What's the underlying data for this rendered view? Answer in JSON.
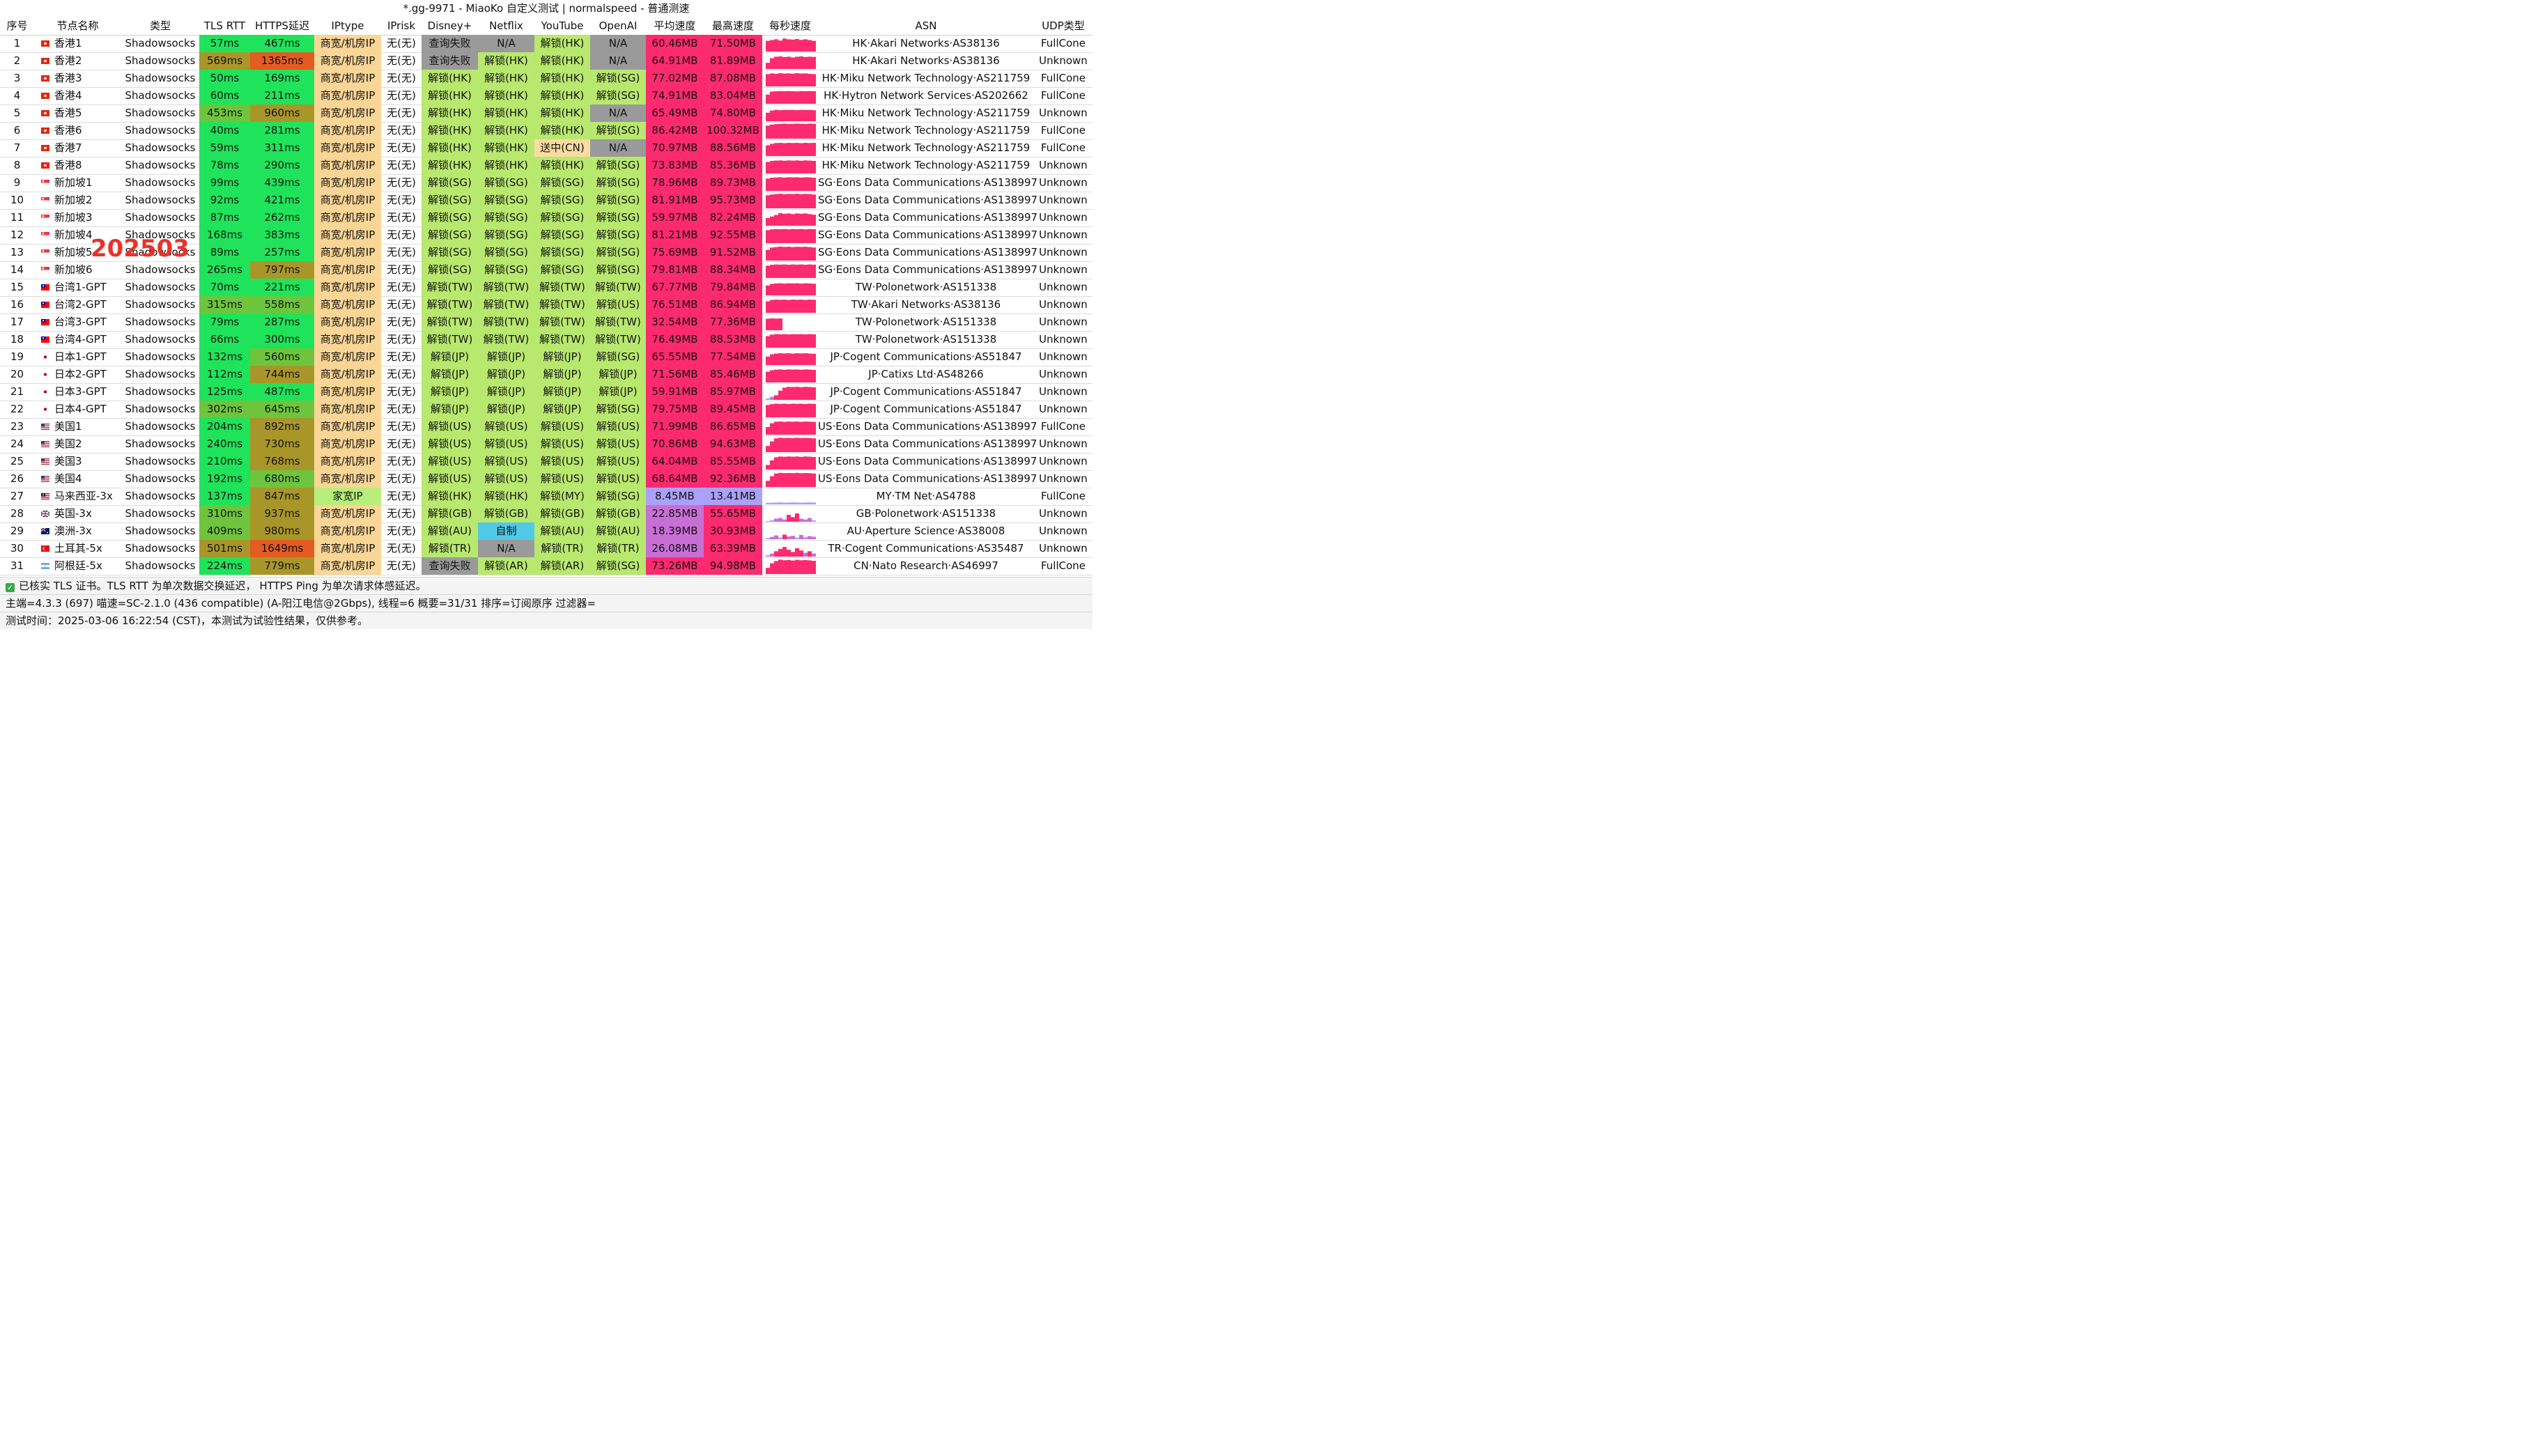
{
  "window_title": "*.gg-9971 - MiaoKo 自定义测试 | normalspeed - 普通测速",
  "watermark_text": "202503",
  "colors": {
    "latency_good": "#1fe35a",
    "latency_mid": "#6ec53d",
    "latency_warn": "#a89728",
    "latency_bad": "#e45b21",
    "iptype_commercial": "#f9d596",
    "iptype_home": "#b8ef7a",
    "unlock": "#b8e86e",
    "na_fail": "#9a9a9a",
    "sending": "#fbdca0",
    "self_made": "#4fc9e7",
    "speed_hot": "#fd2a6f",
    "speed_mid": "#c86fd6",
    "speed_low": "#a9a2f8"
  },
  "columns": [
    "序号",
    "节点名称",
    "类型",
    "TLS RTT",
    "HTTPS延迟",
    "IPtype",
    "IPrisk",
    "Disney+",
    "Netflix",
    "YouTube",
    "OpenAI",
    "平均速度",
    "最高速度",
    "每秒速度",
    "ASN",
    "UDP类型"
  ],
  "rows": [
    {
      "no": "1",
      "flag": "hk",
      "name": "香港1",
      "type": "Shadowsocks",
      "tls": "57ms",
      "https": "467ms",
      "iptype": "商宽/机房IP",
      "iprisk": "无(无)",
      "disney": "查询失败",
      "netflix": "N/A",
      "youtube": "解锁(HK)",
      "openai": "N/A",
      "avg": "60.46MB",
      "max": "71.50MB",
      "asn": "HK·Akari Networks·AS38136",
      "udp": "FullCone",
      "spark": [
        70,
        75,
        80,
        72,
        85,
        80,
        78,
        82,
        76,
        80,
        75,
        70
      ]
    },
    {
      "no": "2",
      "flag": "hk",
      "name": "香港2",
      "type": "Shadowsocks",
      "tls": "569ms",
      "https": "1365ms",
      "iptype": "商宽/机房IP",
      "iprisk": "无(无)",
      "disney": "查询失败",
      "netflix": "解锁(HK)",
      "youtube": "解锁(HK)",
      "openai": "N/A",
      "avg": "64.91MB",
      "max": "81.89MB",
      "asn": "HK·Akari Networks·AS38136",
      "udp": "Unknown",
      "spark": [
        40,
        70,
        80,
        82,
        78,
        80,
        75,
        80,
        82,
        78,
        80,
        79
      ]
    },
    {
      "no": "3",
      "flag": "hk",
      "name": "香港3",
      "type": "Shadowsocks",
      "tls": "50ms",
      "https": "169ms",
      "iptype": "商宽/机房IP",
      "iprisk": "无(无)",
      "disney": "解锁(HK)",
      "netflix": "解锁(HK)",
      "youtube": "解锁(HK)",
      "openai": "解锁(SG)",
      "avg": "77.02MB",
      "max": "87.08MB",
      "asn": "HK·Miku Network Technology·AS211759",
      "udp": "FullCone",
      "spark": [
        80,
        85,
        82,
        86,
        84,
        85,
        83,
        86,
        84,
        85,
        82,
        80
      ]
    },
    {
      "no": "4",
      "flag": "hk",
      "name": "香港4",
      "type": "Shadowsocks",
      "tls": "60ms",
      "https": "211ms",
      "iptype": "商宽/机房IP",
      "iprisk": "无(无)",
      "disney": "解锁(HK)",
      "netflix": "解锁(HK)",
      "youtube": "解锁(HK)",
      "openai": "解锁(SG)",
      "avg": "74.91MB",
      "max": "83.04MB",
      "asn": "HK·Hytron Network Services·AS202662",
      "udp": "FullCone",
      "spark": [
        60,
        80,
        82,
        83,
        82,
        83,
        82,
        81,
        83,
        82,
        83,
        82
      ]
    },
    {
      "no": "5",
      "flag": "hk",
      "name": "香港5",
      "type": "Shadowsocks",
      "tls": "453ms",
      "https": "960ms",
      "iptype": "商宽/机房IP",
      "iprisk": "无(无)",
      "disney": "解锁(HK)",
      "netflix": "解锁(HK)",
      "youtube": "解锁(HK)",
      "openai": "N/A",
      "avg": "65.49MB",
      "max": "74.80MB",
      "asn": "HK·Miku Network Technology·AS211759",
      "udp": "Unknown",
      "spark": [
        55,
        70,
        74,
        72,
        74,
        73,
        74,
        72,
        74,
        73,
        74,
        72
      ]
    },
    {
      "no": "6",
      "flag": "hk",
      "name": "香港6",
      "type": "Shadowsocks",
      "tls": "40ms",
      "https": "281ms",
      "iptype": "商宽/机房IP",
      "iprisk": "无(无)",
      "disney": "解锁(HK)",
      "netflix": "解锁(HK)",
      "youtube": "解锁(HK)",
      "openai": "解锁(SG)",
      "avg": "86.42MB",
      "max": "100.32MB",
      "asn": "HK·Miku Network Technology·AS211759",
      "udp": "FullCone",
      "spark": [
        85,
        92,
        95,
        96,
        98,
        96,
        97,
        98,
        97,
        96,
        98,
        97
      ]
    },
    {
      "no": "7",
      "flag": "hk",
      "name": "香港7",
      "type": "Shadowsocks",
      "tls": "59ms",
      "https": "311ms",
      "iptype": "商宽/机房IP",
      "iprisk": "无(无)",
      "disney": "解锁(HK)",
      "netflix": "解锁(HK)",
      "youtube": "送中(CN)",
      "openai": "N/A",
      "avg": "70.97MB",
      "max": "88.56MB",
      "asn": "HK·Miku Network Technology·AS211759",
      "udp": "FullCone",
      "spark": [
        70,
        80,
        85,
        86,
        84,
        86,
        85,
        86,
        84,
        86,
        85,
        86
      ]
    },
    {
      "no": "8",
      "flag": "hk",
      "name": "香港8",
      "type": "Shadowsocks",
      "tls": "78ms",
      "https": "290ms",
      "iptype": "商宽/机房IP",
      "iprisk": "无(无)",
      "disney": "解锁(HK)",
      "netflix": "解锁(HK)",
      "youtube": "解锁(HK)",
      "openai": "解锁(SG)",
      "avg": "73.83MB",
      "max": "85.36MB",
      "asn": "HK·Miku Network Technology·AS211759",
      "udp": "Unknown",
      "spark": [
        75,
        82,
        84,
        85,
        83,
        85,
        84,
        85,
        83,
        85,
        84,
        82
      ]
    },
    {
      "no": "9",
      "flag": "sg",
      "name": "新加坡1",
      "type": "Shadowsocks",
      "tls": "99ms",
      "https": "439ms",
      "iptype": "商宽/机房IP",
      "iprisk": "无(无)",
      "disney": "解锁(SG)",
      "netflix": "解锁(SG)",
      "youtube": "解锁(SG)",
      "openai": "解锁(SG)",
      "avg": "78.96MB",
      "max": "89.73MB",
      "asn": "SG·Eons Data Communications·AS138997",
      "udp": "Unknown",
      "spark": [
        80,
        86,
        88,
        89,
        87,
        89,
        88,
        89,
        87,
        89,
        88,
        86
      ]
    },
    {
      "no": "10",
      "flag": "sg",
      "name": "新加坡2",
      "type": "Shadowsocks",
      "tls": "92ms",
      "https": "421ms",
      "iptype": "商宽/机房IP",
      "iprisk": "无(无)",
      "disney": "解锁(SG)",
      "netflix": "解锁(SG)",
      "youtube": "解锁(SG)",
      "openai": "解锁(SG)",
      "avg": "81.91MB",
      "max": "95.73MB",
      "asn": "SG·Eons Data Communications·AS138997",
      "udp": "Unknown",
      "spark": [
        85,
        90,
        93,
        95,
        92,
        94,
        93,
        95,
        92,
        94,
        93,
        90
      ]
    },
    {
      "no": "11",
      "flag": "sg",
      "name": "新加坡3",
      "type": "Shadowsocks",
      "tls": "87ms",
      "https": "262ms",
      "iptype": "商宽/机房IP",
      "iprisk": "无(无)",
      "disney": "解锁(SG)",
      "netflix": "解锁(SG)",
      "youtube": "解锁(SG)",
      "openai": "解锁(SG)",
      "avg": "59.97MB",
      "max": "82.24MB",
      "asn": "SG·Eons Data Communications·AS138997",
      "udp": "Unknown",
      "spark": [
        50,
        60,
        70,
        82,
        78,
        80,
        76,
        80,
        78,
        80,
        76,
        72
      ]
    },
    {
      "no": "12",
      "flag": "sg",
      "name": "新加坡4",
      "type": "Shadowsocks",
      "tls": "168ms",
      "https": "383ms",
      "iptype": "商宽/机房IP",
      "iprisk": "无(无)",
      "disney": "解锁(SG)",
      "netflix": "解锁(SG)",
      "youtube": "解锁(SG)",
      "openai": "解锁(SG)",
      "avg": "81.21MB",
      "max": "92.55MB",
      "asn": "SG·Eons Data Communications·AS138997",
      "udp": "Unknown",
      "spark": [
        85,
        90,
        92,
        91,
        92,
        90,
        92,
        91,
        92,
        90,
        92,
        91
      ]
    },
    {
      "no": "13",
      "flag": "sg",
      "name": "新加坡5",
      "type": "Shadowsocks",
      "tls": "89ms",
      "https": "257ms",
      "iptype": "商宽/机房IP",
      "iprisk": "无(无)",
      "disney": "解锁(SG)",
      "netflix": "解锁(SG)",
      "youtube": "解锁(SG)",
      "openai": "解锁(SG)",
      "avg": "75.69MB",
      "max": "91.52MB",
      "asn": "SG·Eons Data Communications·AS138997",
      "udp": "Unknown",
      "spark": [
        70,
        85,
        88,
        91,
        89,
        90,
        88,
        90,
        89,
        90,
        88,
        85
      ]
    },
    {
      "no": "14",
      "flag": "sg",
      "name": "新加坡6",
      "type": "Shadowsocks",
      "tls": "265ms",
      "https": "797ms",
      "iptype": "商宽/机房IP",
      "iprisk": "无(无)",
      "disney": "解锁(SG)",
      "netflix": "解锁(SG)",
      "youtube": "解锁(SG)",
      "openai": "解锁(SG)",
      "avg": "79.81MB",
      "max": "88.34MB",
      "asn": "SG·Eons Data Communications·AS138997",
      "udp": "Unknown",
      "spark": [
        80,
        86,
        88,
        87,
        88,
        86,
        88,
        87,
        88,
        86,
        88,
        87
      ]
    },
    {
      "no": "15",
      "flag": "tw",
      "name": "台湾1-GPT",
      "type": "Shadowsocks",
      "tls": "70ms",
      "https": "221ms",
      "iptype": "商宽/机房IP",
      "iprisk": "无(无)",
      "disney": "解锁(TW)",
      "netflix": "解锁(TW)",
      "youtube": "解锁(TW)",
      "openai": "解锁(TW)",
      "avg": "67.77MB",
      "max": "79.84MB",
      "asn": "TW·Polonetwork·AS151338",
      "udp": "Unknown",
      "spark": [
        65,
        75,
        78,
        79,
        77,
        79,
        78,
        79,
        77,
        79,
        78,
        76
      ]
    },
    {
      "no": "16",
      "flag": "tw",
      "name": "台湾2-GPT",
      "type": "Shadowsocks",
      "tls": "315ms",
      "https": "558ms",
      "iptype": "商宽/机房IP",
      "iprisk": "无(无)",
      "disney": "解锁(TW)",
      "netflix": "解锁(TW)",
      "youtube": "解锁(TW)",
      "openai": "解锁(US)",
      "avg": "76.51MB",
      "max": "86.94MB",
      "asn": "TW·Akari Networks·AS38136",
      "udp": "Unknown",
      "spark": [
        75,
        84,
        86,
        85,
        86,
        84,
        86,
        85,
        86,
        84,
        86,
        85
      ]
    },
    {
      "no": "17",
      "flag": "tw",
      "name": "台湾3-GPT",
      "type": "Shadowsocks",
      "tls": "79ms",
      "https": "287ms",
      "iptype": "商宽/机房IP",
      "iprisk": "无(无)",
      "disney": "解锁(TW)",
      "netflix": "解锁(TW)",
      "youtube": "解锁(TW)",
      "openai": "解锁(TW)",
      "avg": "32.54MB",
      "max": "77.36MB",
      "asn": "TW·Polonetwork·AS151338",
      "udp": "Unknown",
      "spark": [
        75,
        77,
        76,
        77,
        0,
        0,
        0,
        0,
        0,
        0,
        0,
        0
      ]
    },
    {
      "no": "18",
      "flag": "tw",
      "name": "台湾4-GPT",
      "type": "Shadowsocks",
      "tls": "66ms",
      "https": "300ms",
      "iptype": "商宽/机房IP",
      "iprisk": "无(无)",
      "disney": "解锁(TW)",
      "netflix": "解锁(TW)",
      "youtube": "解锁(TW)",
      "openai": "解锁(TW)",
      "avg": "76.49MB",
      "max": "88.53MB",
      "asn": "TW·Polonetwork·AS151338",
      "udp": "Unknown",
      "spark": [
        75,
        85,
        88,
        87,
        88,
        86,
        88,
        87,
        88,
        86,
        88,
        87
      ]
    },
    {
      "no": "19",
      "flag": "jp",
      "name": "日本1-GPT",
      "type": "Shadowsocks",
      "tls": "132ms",
      "https": "560ms",
      "iptype": "商宽/机房IP",
      "iprisk": "无(无)",
      "disney": "解锁(JP)",
      "netflix": "解锁(JP)",
      "youtube": "解锁(JP)",
      "openai": "解锁(SG)",
      "avg": "65.55MB",
      "max": "77.54MB",
      "asn": "JP·Cogent Communications·AS51847",
      "udp": "Unknown",
      "spark": [
        55,
        70,
        75,
        77,
        76,
        77,
        75,
        77,
        76,
        77,
        75,
        74
      ]
    },
    {
      "no": "20",
      "flag": "jp",
      "name": "日本2-GPT",
      "type": "Shadowsocks",
      "tls": "112ms",
      "https": "744ms",
      "iptype": "商宽/机房IP",
      "iprisk": "无(无)",
      "disney": "解锁(JP)",
      "netflix": "解锁(JP)",
      "youtube": "解锁(JP)",
      "openai": "解锁(JP)",
      "avg": "71.56MB",
      "max": "85.46MB",
      "asn": "JP·Catixs Ltd·AS48266",
      "udp": "Unknown",
      "spark": [
        70,
        80,
        84,
        85,
        83,
        85,
        84,
        85,
        83,
        85,
        84,
        82
      ]
    },
    {
      "no": "21",
      "flag": "jp",
      "name": "日本3-GPT",
      "type": "Shadowsocks",
      "tls": "125ms",
      "https": "487ms",
      "iptype": "商宽/机房IP",
      "iprisk": "无(无)",
      "disney": "解锁(JP)",
      "netflix": "解锁(JP)",
      "youtube": "解锁(JP)",
      "openai": "解锁(JP)",
      "avg": "59.91MB",
      "max": "85.97MB",
      "asn": "JP·Cogent Communications·AS51847",
      "udp": "Unknown",
      "spark": [
        10,
        20,
        30,
        60,
        80,
        85,
        84,
        85,
        83,
        85,
        84,
        82
      ]
    },
    {
      "no": "22",
      "flag": "jp",
      "name": "日本4-GPT",
      "type": "Shadowsocks",
      "tls": "302ms",
      "https": "645ms",
      "iptype": "商宽/机房IP",
      "iprisk": "无(无)",
      "disney": "解锁(JP)",
      "netflix": "解锁(JP)",
      "youtube": "解锁(JP)",
      "openai": "解锁(SG)",
      "avg": "79.75MB",
      "max": "89.45MB",
      "asn": "JP·Cogent Communications·AS51847",
      "udp": "Unknown",
      "spark": [
        80,
        86,
        89,
        88,
        89,
        87,
        89,
        88,
        89,
        87,
        89,
        88
      ]
    },
    {
      "no": "23",
      "flag": "us",
      "name": "美国1",
      "type": "Shadowsocks",
      "tls": "204ms",
      "https": "892ms",
      "iptype": "商宽/机房IP",
      "iprisk": "无(无)",
      "disney": "解锁(US)",
      "netflix": "解锁(US)",
      "youtube": "解锁(US)",
      "openai": "解锁(US)",
      "avg": "71.99MB",
      "max": "86.65MB",
      "asn": "US·Eons Data Communications·AS138997",
      "udp": "FullCone",
      "spark": [
        50,
        75,
        85,
        86,
        84,
        86,
        85,
        86,
        84,
        86,
        85,
        84
      ]
    },
    {
      "no": "24",
      "flag": "us",
      "name": "美国2",
      "type": "Shadowsocks",
      "tls": "240ms",
      "https": "730ms",
      "iptype": "商宽/机房IP",
      "iprisk": "无(无)",
      "disney": "解锁(US)",
      "netflix": "解锁(US)",
      "youtube": "解锁(US)",
      "openai": "解锁(US)",
      "avg": "70.86MB",
      "max": "94.63MB",
      "asn": "US·Eons Data Communications·AS138997",
      "udp": "Unknown",
      "spark": [
        40,
        70,
        90,
        94,
        92,
        93,
        92,
        94,
        92,
        93,
        92,
        90
      ]
    },
    {
      "no": "25",
      "flag": "us",
      "name": "美国3",
      "type": "Shadowsocks",
      "tls": "210ms",
      "https": "768ms",
      "iptype": "商宽/机房IP",
      "iprisk": "无(无)",
      "disney": "解锁(US)",
      "netflix": "解锁(US)",
      "youtube": "解锁(US)",
      "openai": "解锁(US)",
      "avg": "64.04MB",
      "max": "85.55MB",
      "asn": "US·Eons Data Communications·AS138997",
      "udp": "Unknown",
      "spark": [
        30,
        60,
        80,
        85,
        83,
        85,
        84,
        85,
        83,
        85,
        84,
        82
      ]
    },
    {
      "no": "26",
      "flag": "us",
      "name": "美国4",
      "type": "Shadowsocks",
      "tls": "192ms",
      "https": "680ms",
      "iptype": "商宽/机房IP",
      "iprisk": "无(无)",
      "disney": "解锁(US)",
      "netflix": "解锁(US)",
      "youtube": "解锁(US)",
      "openai": "解锁(US)",
      "avg": "68.64MB",
      "max": "92.36MB",
      "asn": "US·Eons Data Communications·AS138997",
      "udp": "Unknown",
      "spark": [
        40,
        70,
        88,
        92,
        90,
        91,
        90,
        92,
        90,
        91,
        90,
        88
      ]
    },
    {
      "no": "27",
      "flag": "my",
      "name": "马来西亚-3x",
      "type": "Shadowsocks",
      "tls": "137ms",
      "https": "847ms",
      "iptype": "家宽IP",
      "iprisk": "无(无)",
      "disney": "解锁(HK)",
      "netflix": "解锁(HK)",
      "youtube": "解锁(MY)",
      "openai": "解锁(SG)",
      "avg": "8.45MB",
      "max": "13.41MB",
      "asn": "MY·TM Net·AS4788",
      "udp": "FullCone",
      "spark": [
        10,
        11,
        12,
        13,
        11,
        12,
        13,
        12,
        11,
        12,
        13,
        12
      ]
    },
    {
      "no": "28",
      "flag": "gb",
      "name": "英国-3x",
      "type": "Shadowsocks",
      "tls": "310ms",
      "https": "937ms",
      "iptype": "商宽/机房IP",
      "iprisk": "无(无)",
      "disney": "解锁(GB)",
      "netflix": "解锁(GB)",
      "youtube": "解锁(GB)",
      "openai": "解锁(GB)",
      "avg": "22.85MB",
      "max": "55.65MB",
      "asn": "GB·Polonetwork·AS151338",
      "udp": "Unknown",
      "spark": [
        5,
        10,
        20,
        25,
        15,
        45,
        30,
        55,
        20,
        15,
        25,
        10
      ]
    },
    {
      "no": "29",
      "flag": "au",
      "name": "澳洲-3x",
      "type": "Shadowsocks",
      "tls": "409ms",
      "https": "980ms",
      "iptype": "商宽/机房IP",
      "iprisk": "无(无)",
      "disney": "解锁(AU)",
      "netflix": "自制",
      "youtube": "解锁(AU)",
      "openai": "解锁(AU)",
      "avg": "18.39MB",
      "max": "30.93MB",
      "asn": "AU·Aperture Science·AS38008",
      "udp": "Unknown",
      "spark": [
        8,
        15,
        25,
        12,
        30,
        18,
        22,
        10,
        28,
        14,
        20,
        16
      ]
    },
    {
      "no": "30",
      "flag": "tr",
      "name": "土耳其-5x",
      "type": "Shadowsocks",
      "tls": "501ms",
      "https": "1649ms",
      "iptype": "商宽/机房IP",
      "iprisk": "无(无)",
      "disney": "解锁(TR)",
      "netflix": "N/A",
      "youtube": "解锁(TR)",
      "openai": "解锁(TR)",
      "avg": "26.08MB",
      "max": "63.39MB",
      "asn": "TR·Cogent Communications·AS35487",
      "udp": "Unknown",
      "spark": [
        10,
        20,
        35,
        50,
        63,
        45,
        30,
        55,
        40,
        25,
        35,
        20
      ]
    },
    {
      "no": "31",
      "flag": "ar",
      "name": "阿根廷-5x",
      "type": "Shadowsocks",
      "tls": "224ms",
      "https": "779ms",
      "iptype": "商宽/机房IP",
      "iprisk": "无(无)",
      "disney": "查询失败",
      "netflix": "解锁(AR)",
      "youtube": "解锁(AR)",
      "openai": "解锁(SG)",
      "avg": "73.26MB",
      "max": "94.98MB",
      "asn": "CN·Nato Research·AS46997",
      "udp": "FullCone",
      "spark": [
        40,
        70,
        85,
        94,
        90,
        92,
        88,
        93,
        90,
        91,
        89,
        86
      ]
    }
  ],
  "footer": {
    "line1": "已核实 TLS 证书。TLS RTT 为单次数据交换延迟， HTTPS Ping 为单次请求体感延迟。",
    "line2": "主端=4.3.3 (697) 喵速=SC-2.1.0 (436 compatible) (A-阳江电信@2Gbps), 线程=6 概要=31/31 排序=订阅原序 过滤器=",
    "line3": "测试时间：2025-03-06 16:22:54 (CST)，本测试为试验性结果，仅供参考。"
  }
}
